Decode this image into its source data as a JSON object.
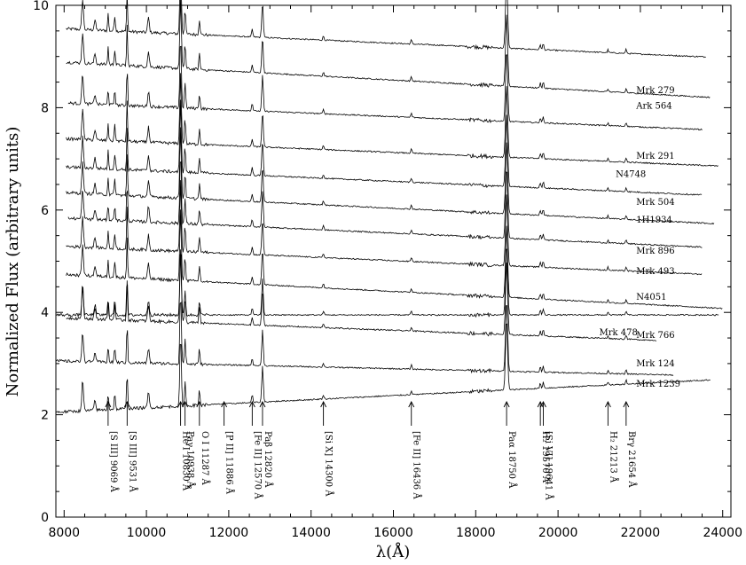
{
  "chart_data": {
    "type": "line",
    "title": "",
    "xlabel": "λ(Å)",
    "ylabel": "Normalized Flux (arbitrary units)",
    "xlim": [
      7800,
      24200
    ],
    "ylim": [
      0,
      10
    ],
    "xticks": [
      "8000",
      "10000",
      "12000",
      "14000",
      "16000",
      "18000",
      "20000",
      "22000",
      "24000"
    ],
    "xtick_values": [
      8000,
      10000,
      12000,
      14000,
      16000,
      18000,
      20000,
      22000,
      24000
    ],
    "yticks": [
      "0",
      "2",
      "4",
      "6",
      "8",
      "10"
    ],
    "ytick_values": [
      0,
      2,
      4,
      6,
      8,
      10
    ],
    "series": [
      {
        "name": "Mrk 279",
        "xstart": 8050,
        "xend": 23600,
        "base": 9.55,
        "slope": -0.58,
        "label_x": 21900,
        "label_y": 8.28
      },
      {
        "name": "Ark 564",
        "xstart": 8050,
        "xend": 23700,
        "base": 8.9,
        "slope": -0.72,
        "label_x": 21900,
        "label_y": 7.98
      },
      {
        "name": "Mrk 291",
        "xstart": 8100,
        "xend": 23500,
        "base": 8.1,
        "slope": -0.55,
        "label_x": 21900,
        "label_y": 7.0
      },
      {
        "name": "N4748",
        "xstart": 8050,
        "xend": 23900,
        "base": 7.4,
        "slope": -0.55,
        "label_x": 21400,
        "label_y": 6.65
      },
      {
        "name": "Mrk 504",
        "xstart": 8050,
        "xend": 23500,
        "base": 6.85,
        "slope": -0.58,
        "label_x": 21900,
        "label_y": 6.1
      },
      {
        "name": "1H1934",
        "xstart": 8050,
        "xend": 23800,
        "base": 6.35,
        "slope": -0.63,
        "label_x": 21900,
        "label_y": 5.75
      },
      {
        "name": "Mrk 896",
        "xstart": 8100,
        "xend": 23500,
        "base": 5.85,
        "slope": -0.6,
        "label_x": 21900,
        "label_y": 5.15
      },
      {
        "name": "Mrk 493",
        "xstart": 8050,
        "xend": 23500,
        "base": 5.3,
        "slope": -0.58,
        "label_x": 21900,
        "label_y": 4.75
      },
      {
        "name": "N4051",
        "xstart": 8050,
        "xend": 24000,
        "base": 4.75,
        "slope": -0.68,
        "label_x": 21900,
        "label_y": 4.25
      },
      {
        "name": "Mrk 766",
        "xstart": 7800,
        "xend": 23900,
        "base": 3.95,
        "slope": 0.0,
        "label_x": 21900,
        "label_y": 3.5
      },
      {
        "name": "Mrk 478",
        "xstart": 8050,
        "xend": 22400,
        "base": 3.9,
        "slope": -0.5,
        "label_x": 21000,
        "label_y": 3.55
      },
      {
        "name": "Mrk 124",
        "xstart": 7800,
        "xend": 22800,
        "base": 3.05,
        "slope": -0.3,
        "label_x": 21900,
        "label_y": 2.95
      },
      {
        "name": "Mrk 1239",
        "xstart": 7800,
        "xend": 23700,
        "base": 2.05,
        "slope": 0.65,
        "label_x": 21900,
        "label_y": 2.55
      }
    ],
    "annotations": [
      {
        "label": "[S III] 9069 Å",
        "x": 9069
      },
      {
        "label": "[S III] 9531 Å",
        "x": 9531
      },
      {
        "label": "He I 10830 Å",
        "x": 10830
      },
      {
        "label": "Paγ 10938 Å",
        "x": 10938
      },
      {
        "label": "O I 11287 Å",
        "x": 11287
      },
      {
        "label": "[P II] 11886 Å",
        "x": 11886
      },
      {
        "label": "[Fe II] 12570 Å",
        "x": 12570
      },
      {
        "label": "Paβ 12820 Å",
        "x": 12820
      },
      {
        "label": "[Si X] 14300 Å",
        "x": 14300
      },
      {
        "label": "[Fe II] 16436 Å",
        "x": 16436
      },
      {
        "label": "Paα 18750 Å",
        "x": 18750
      },
      {
        "label": "H₂ 19570 Å",
        "x": 19570
      },
      {
        "label": "[Si VI] 19641 Å",
        "x": 19641
      },
      {
        "label": "H₂ 21213 Å",
        "x": 21213
      },
      {
        "label": "Brγ 21654 Å",
        "x": 21654
      }
    ],
    "grid": false,
    "legend": "none"
  }
}
